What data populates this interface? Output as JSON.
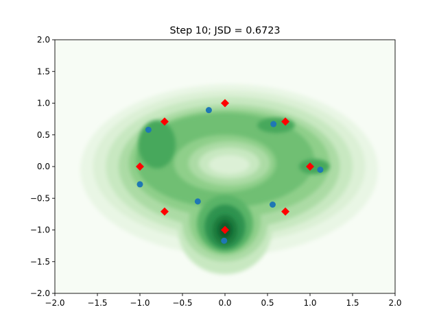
{
  "chart_data": {
    "type": "scatter",
    "title": "Step 10; JSD = 0.6723",
    "xlabel": "",
    "ylabel": "",
    "xlim": [
      -2.0,
      2.0
    ],
    "ylim": [
      -2.0,
      2.0
    ],
    "x_ticks": [
      "−2.0",
      "−1.5",
      "−1.0",
      "−0.5",
      "0.0",
      "0.5",
      "1.0",
      "1.5",
      "2.0"
    ],
    "y_ticks": [
      "−2.0",
      "−1.5",
      "−1.0",
      "−0.5",
      "0.0",
      "0.5",
      "1.0",
      "1.5",
      "2.0"
    ],
    "grid": false,
    "background": {
      "type": "density-contour",
      "colormap": "Greens",
      "levels": 10
    },
    "series": [
      {
        "marker": "diamond",
        "color": "#ff0000",
        "points": [
          [
            1.0,
            0.0
          ],
          [
            0.71,
            0.71
          ],
          [
            0.0,
            1.0
          ],
          [
            -0.71,
            0.71
          ],
          [
            -1.0,
            0.0
          ],
          [
            -0.71,
            -0.71
          ],
          [
            0.0,
            -1.0
          ],
          [
            0.71,
            -0.71
          ]
        ]
      },
      {
        "marker": "circle",
        "color": "#1f77b4",
        "points": [
          [
            -0.19,
            0.89
          ],
          [
            -0.9,
            0.58
          ],
          [
            -1.0,
            -0.28
          ],
          [
            -0.32,
            -0.55
          ],
          [
            -0.01,
            -1.17
          ],
          [
            0.57,
            0.67
          ],
          [
            0.56,
            -0.6
          ],
          [
            1.12,
            -0.05
          ]
        ]
      }
    ]
  }
}
